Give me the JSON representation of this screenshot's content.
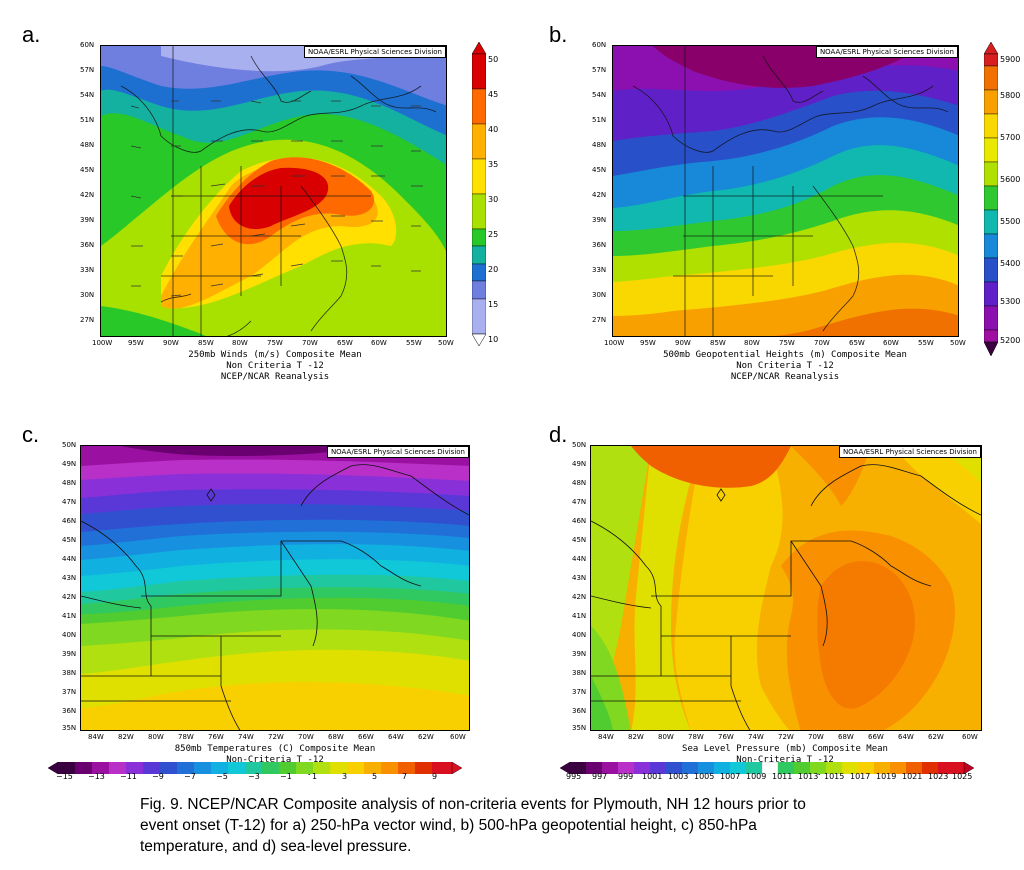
{
  "panels": [
    {
      "letter": "a.",
      "credit": "NOAA/ESRL Physical Sciences Division",
      "caption": [
        "250mb Winds (m/s)   Composite Mean",
        "Non Criteria T -12",
        "NCEP/NCAR Reanalysis"
      ],
      "lat_ticks": [
        "60N",
        "57N",
        "54N",
        "51N",
        "48N",
        "45N",
        "42N",
        "39N",
        "36N",
        "33N",
        "30N",
        "27N"
      ],
      "lon_ticks": [
        "100W",
        "95W",
        "90W",
        "85W",
        "80W",
        "75W",
        "70W",
        "65W",
        "60W",
        "55W",
        "50W"
      ],
      "colorbar": {
        "labels": [
          "50",
          "45",
          "40",
          "35",
          "30",
          "25",
          "20",
          "15",
          "10"
        ],
        "colors": [
          "#d80000",
          "#ff6a00",
          "#ffb000",
          "#ffe000",
          "#a8e000",
          "#28c828",
          "#14b0a0",
          "#1e70d0",
          "#3050c8",
          "#6f7fe0",
          "#a8b0f0",
          "#dcdcff"
        ]
      },
      "ylabel": "",
      "xlabel": ""
    },
    {
      "letter": "b.",
      "credit": "NOAA/ESRL Physical Sciences Division",
      "caption": [
        "500mb Geopotential Heights (m)   Composite Mean",
        "Non Criteria T -12",
        "NCEP/NCAR Reanalysis"
      ],
      "lat_ticks": [
        "60N",
        "57N",
        "54N",
        "51N",
        "48N",
        "45N",
        "42N",
        "39N",
        "36N",
        "33N",
        "30N",
        "27N"
      ],
      "lon_ticks": [
        "100W",
        "95W",
        "90W",
        "85W",
        "80W",
        "75W",
        "70W",
        "65W",
        "60W",
        "55W",
        "50W"
      ],
      "colorbar": {
        "labels": [
          "5900",
          "5800",
          "5700",
          "5600",
          "5500",
          "5400",
          "5300",
          "5200"
        ],
        "colors": [
          "#d81e1e",
          "#f07000",
          "#f8a000",
          "#f8d800",
          "#b0e000",
          "#30c830",
          "#10b8b0",
          "#1888d8",
          "#2850c8",
          "#6020c8",
          "#8c10b0",
          "#8a006a"
        ]
      }
    },
    {
      "letter": "c.",
      "credit": "NOAA/ESRL Physical Sciences Division",
      "caption": [
        "850mb Temperatures (C)   Composite Mean",
        "Non-Criteria T -12",
        "NCEP/NCAR Reanalysis"
      ],
      "lat_ticks": [
        "50N",
        "49N",
        "48N",
        "47N",
        "46N",
        "45N",
        "44N",
        "43N",
        "42N",
        "41N",
        "40N",
        "39N",
        "38N",
        "37N",
        "36N",
        "35N"
      ],
      "lon_ticks": [
        "84W",
        "82W",
        "80W",
        "78W",
        "76W",
        "74W",
        "72W",
        "70W",
        "68W",
        "66W",
        "64W",
        "62W",
        "60W"
      ],
      "colorbar": {
        "labels": [
          "−15",
          "−13",
          "−11",
          "−9",
          "−7",
          "−5",
          "−3",
          "−1",
          "1",
          "3",
          "5",
          "7",
          "9"
        ],
        "colors": [
          "#3a0040",
          "#6a0070",
          "#9a10a0",
          "#b830c8",
          "#8a30d8",
          "#5a38d8",
          "#3050d0",
          "#2070d8",
          "#1890e0",
          "#10b0e0",
          "#10c8d8",
          "#20c8a0",
          "#30c860",
          "#50cc30",
          "#80d820",
          "#b0e010",
          "#e0e000",
          "#f8d000",
          "#f8b000",
          "#f89000",
          "#f06000",
          "#e03000",
          "#d81020"
        ]
      }
    },
    {
      "letter": "d.",
      "credit": "NOAA/ESRL Physical Sciences Division",
      "caption": [
        "Sea Level Pressure (mb)   Composite Mean",
        "Non-Criteria T -12",
        "NCEP/NCAR Reanalysis"
      ],
      "lat_ticks": [
        "50N",
        "49N",
        "48N",
        "47N",
        "46N",
        "45N",
        "44N",
        "43N",
        "42N",
        "41N",
        "40N",
        "39N",
        "38N",
        "37N",
        "36N",
        "35N"
      ],
      "lon_ticks": [
        "84W",
        "82W",
        "80W",
        "78W",
        "76W",
        "74W",
        "72W",
        "70W",
        "68W",
        "66W",
        "64W",
        "62W",
        "60W"
      ],
      "colorbar": {
        "labels": [
          "995",
          "997",
          "999",
          "1001",
          "1003",
          "1005",
          "1007",
          "1009",
          "1011",
          "1013",
          "1015",
          "1017",
          "1019",
          "1021",
          "1023",
          "1025"
        ],
        "colors": [
          "#3a0040",
          "#6a0070",
          "#9a10a0",
          "#b830c8",
          "#8a30d8",
          "#5a38d8",
          "#3050d0",
          "#2070d8",
          "#1890e0",
          "#10b0e0",
          "#10c8d8",
          "#20c8a0",
          "#ffffff",
          "#30c860",
          "#50cc30",
          "#80d820",
          "#b0e010",
          "#e0e000",
          "#f8d000",
          "#f8b000",
          "#f89000",
          "#f06000",
          "#e03000",
          "#d81020",
          "#c00020"
        ]
      }
    }
  ],
  "figure_caption": [
    "Fig. 9.  NCEP/NCAR Composite analysis of non-criteria events for Plymouth, NH 12 hours prior to",
    "event onset (T-12) for a) 250-hPa vector wind, b) 500-hPa geopotential height, c) 850-hPa",
    "temperature, and d) sea-level pressure."
  ]
}
